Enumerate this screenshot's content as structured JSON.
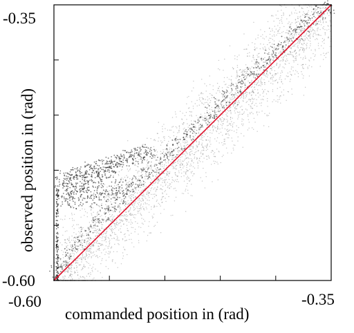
{
  "chart_data": {
    "type": "scatter",
    "title": "",
    "xlabel": "commanded position in (rad)",
    "ylabel": "observed position in (rad)",
    "xlim": [
      -0.6,
      -0.35
    ],
    "ylim": [
      -0.6,
      -0.35
    ],
    "x_tick_labels": [
      {
        "value": -0.6,
        "text": "-0.60"
      },
      {
        "value": -0.35,
        "text": "-0.35"
      }
    ],
    "y_tick_labels": [
      {
        "value": -0.6,
        "text": "-0.60"
      },
      {
        "value": -0.35,
        "text": "-0.35"
      }
    ],
    "x_ticks": [
      -0.6,
      -0.55,
      -0.5,
      -0.45,
      -0.4,
      -0.35
    ],
    "y_ticks": [
      -0.6,
      -0.55,
      -0.5,
      -0.45,
      -0.4,
      -0.35
    ],
    "grid": false,
    "legend": "none",
    "series": [
      {
        "kind": "scatter",
        "color": "#000000",
        "description_points": [
          {
            "x": -0.598,
            "y": -0.592
          },
          {
            "x": -0.592,
            "y": -0.585
          },
          {
            "x": -0.585,
            "y": -0.575
          },
          {
            "x": -0.578,
            "y": -0.566
          },
          {
            "x": -0.57,
            "y": -0.556
          },
          {
            "x": -0.562,
            "y": -0.548
          },
          {
            "x": -0.555,
            "y": -0.54
          },
          {
            "x": -0.548,
            "y": -0.532
          },
          {
            "x": -0.54,
            "y": -0.525
          },
          {
            "x": -0.532,
            "y": -0.518
          },
          {
            "x": -0.525,
            "y": -0.511
          },
          {
            "x": -0.518,
            "y": -0.504
          },
          {
            "x": -0.51,
            "y": -0.497
          },
          {
            "x": -0.502,
            "y": -0.489
          },
          {
            "x": -0.495,
            "y": -0.482
          },
          {
            "x": -0.488,
            "y": -0.476
          },
          {
            "x": -0.48,
            "y": -0.468
          },
          {
            "x": -0.472,
            "y": -0.461
          },
          {
            "x": -0.465,
            "y": -0.453
          },
          {
            "x": -0.458,
            "y": -0.447
          },
          {
            "x": -0.45,
            "y": -0.44
          },
          {
            "x": -0.442,
            "y": -0.434
          },
          {
            "x": -0.435,
            "y": -0.426
          },
          {
            "x": -0.428,
            "y": -0.419
          },
          {
            "x": -0.42,
            "y": -0.412
          },
          {
            "x": -0.412,
            "y": -0.404
          },
          {
            "x": -0.405,
            "y": -0.397
          },
          {
            "x": -0.398,
            "y": -0.39
          },
          {
            "x": -0.39,
            "y": -0.383
          },
          {
            "x": -0.382,
            "y": -0.376
          },
          {
            "x": -0.375,
            "y": -0.369
          },
          {
            "x": -0.368,
            "y": -0.362
          },
          {
            "x": -0.36,
            "y": -0.357
          },
          {
            "x": -0.353,
            "y": -0.352
          }
        ],
        "cluster_points": [
          {
            "x": -0.594,
            "y": -0.51
          },
          {
            "x": -0.59,
            "y": -0.506
          },
          {
            "x": -0.586,
            "y": -0.508
          },
          {
            "x": -0.582,
            "y": -0.504
          },
          {
            "x": -0.578,
            "y": -0.502
          },
          {
            "x": -0.574,
            "y": -0.506
          },
          {
            "x": -0.57,
            "y": -0.5
          },
          {
            "x": -0.566,
            "y": -0.498
          },
          {
            "x": -0.562,
            "y": -0.501
          },
          {
            "x": -0.558,
            "y": -0.496
          },
          {
            "x": -0.554,
            "y": -0.494
          },
          {
            "x": -0.55,
            "y": -0.497
          },
          {
            "x": -0.546,
            "y": -0.492
          },
          {
            "x": -0.542,
            "y": -0.49
          },
          {
            "x": -0.538,
            "y": -0.493
          },
          {
            "x": -0.534,
            "y": -0.488
          },
          {
            "x": -0.53,
            "y": -0.486
          },
          {
            "x": -0.526,
            "y": -0.489
          },
          {
            "x": -0.522,
            "y": -0.484
          },
          {
            "x": -0.518,
            "y": -0.482
          },
          {
            "x": -0.514,
            "y": -0.485
          },
          {
            "x": -0.592,
            "y": -0.52
          },
          {
            "x": -0.586,
            "y": -0.518
          },
          {
            "x": -0.58,
            "y": -0.516
          },
          {
            "x": -0.574,
            "y": -0.514
          },
          {
            "x": -0.568,
            "y": -0.512
          },
          {
            "x": -0.562,
            "y": -0.51
          },
          {
            "x": -0.556,
            "y": -0.506
          },
          {
            "x": -0.55,
            "y": -0.503
          },
          {
            "x": -0.59,
            "y": -0.527
          },
          {
            "x": -0.584,
            "y": -0.53
          },
          {
            "x": -0.578,
            "y": -0.524
          },
          {
            "x": -0.572,
            "y": -0.528
          },
          {
            "x": -0.566,
            "y": -0.522
          },
          {
            "x": -0.56,
            "y": -0.526
          },
          {
            "x": -0.554,
            "y": -0.518
          },
          {
            "x": -0.548,
            "y": -0.522
          },
          {
            "x": -0.542,
            "y": -0.516
          },
          {
            "x": -0.536,
            "y": -0.514
          }
        ]
      },
      {
        "kind": "line",
        "name": "",
        "color": "#e0102a",
        "x": [
          -0.6,
          -0.35
        ],
        "y": [
          -0.6,
          -0.35
        ]
      }
    ]
  }
}
